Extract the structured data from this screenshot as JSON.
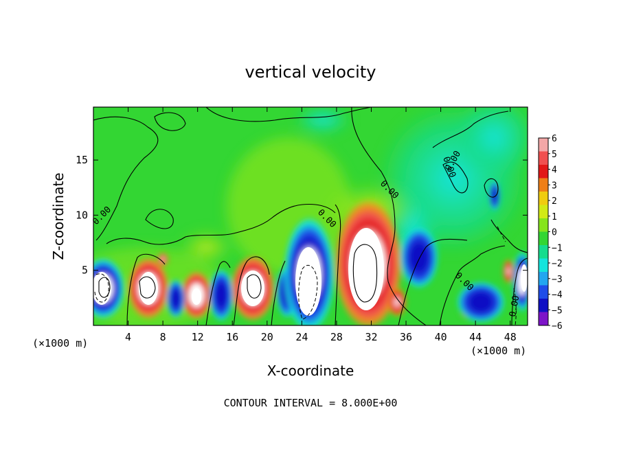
{
  "chart_data": {
    "type": "heatmap",
    "title": "vertical velocity",
    "xlabel": "X-coordinate",
    "ylabel": "Z-coordinate",
    "x_unit_left": "(×1000 m)",
    "x_unit_right": "(×1000 m)",
    "x_ticks": [
      "4",
      "8",
      "12",
      "16",
      "20",
      "24",
      "28",
      "32",
      "36",
      "40",
      "44",
      "48"
    ],
    "y_ticks": [
      "5",
      "10",
      "15"
    ],
    "xlim": [
      0,
      50
    ],
    "ylim": [
      0,
      19.8
    ],
    "colorbar": {
      "labels": [
        "6",
        "5",
        "4",
        "3",
        "2",
        "1",
        "0",
        "−1",
        "−2",
        "−3",
        "−4",
        "−5",
        "−6"
      ],
      "colors": [
        "#f3a7a7",
        "#f05050",
        "#e21818",
        "#ef7f18",
        "#f0cc10",
        "#d2ea16",
        "#86e41c",
        "#33d633",
        "#16dc8e",
        "#14e4dc",
        "#22a6f0",
        "#1f4de8",
        "#1010c4",
        "#7d14c8"
      ]
    },
    "contour_labels": [
      "0.00",
      "0.00",
      "0.00",
      "0.00",
      "0.00",
      "0.00",
      "0.00"
    ],
    "footer": "CONTOUR INTERVAL = 8.000E+00"
  }
}
